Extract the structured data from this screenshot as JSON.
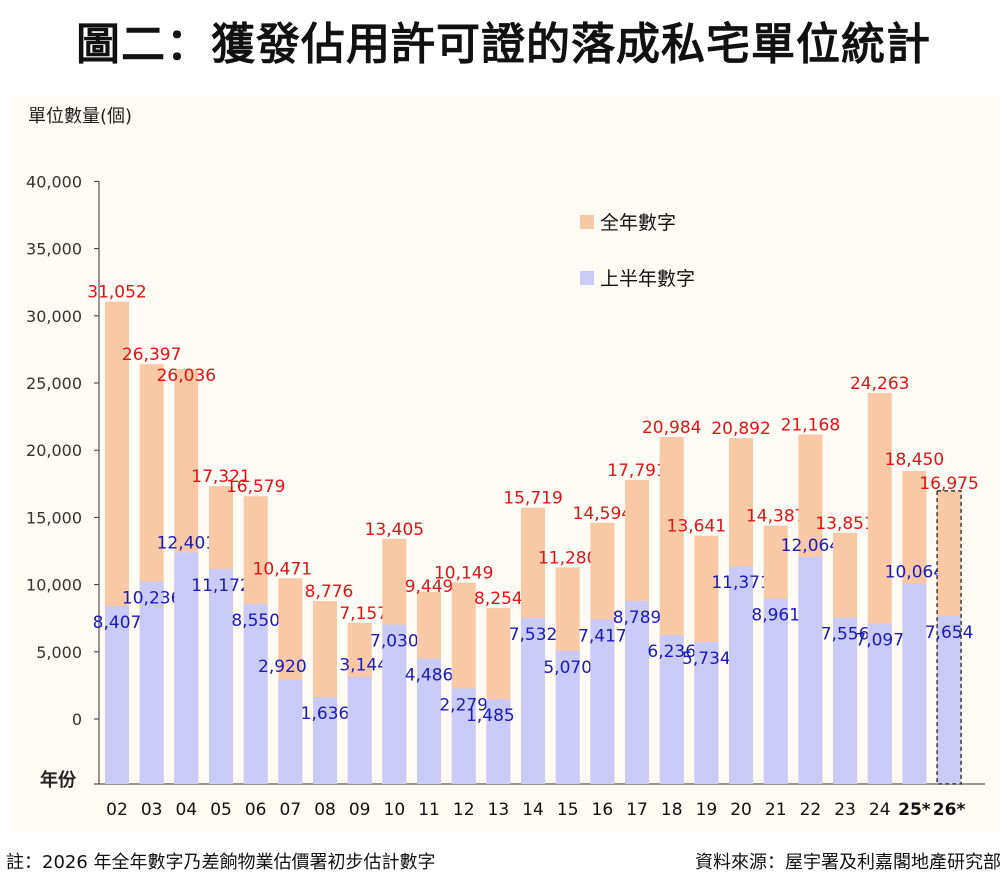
{
  "title": "圖二：獲發佔用許可證的落成私宅單位統計",
  "note": "註：2026 年全年數字乃差餉物業估價署初步估計數字",
  "source": "資料來源：屋宇署及利嘉閣地產研究部",
  "colors": {
    "full_year": "#f9c9a6",
    "half_year": "#c9caf6",
    "full_label": "#e01414",
    "half_label": "#1a1ab8",
    "axis": "#333333"
  },
  "chart_data": {
    "type": "bar",
    "ylabel": "單位數量(個)",
    "xlabel": "年份",
    "ylim": [
      0,
      40000
    ],
    "yticks": [
      "0",
      "5,000",
      "10,000",
      "15,000",
      "20,000",
      "25,000",
      "30,000",
      "35,000",
      "40,000"
    ],
    "yticks_values": [
      0,
      5000,
      10000,
      15000,
      20000,
      25000,
      30000,
      35000,
      40000
    ],
    "categories": [
      "02",
      "03",
      "04",
      "05",
      "06",
      "07",
      "08",
      "09",
      "10",
      "11",
      "12",
      "13",
      "14",
      "15",
      "16",
      "17",
      "18",
      "19",
      "20",
      "21",
      "22",
      "23",
      "24",
      "25*",
      "26*"
    ],
    "legend_position": "top-center",
    "series": [
      {
        "name": "全年數字",
        "values": [
          31052,
          26397,
          26036,
          17321,
          16579,
          10471,
          8776,
          7157,
          13405,
          9449,
          10149,
          8254,
          15719,
          11280,
          14594,
          17791,
          20984,
          13641,
          20892,
          14387,
          21168,
          13851,
          24263,
          18450,
          16975
        ],
        "labels": [
          "31,052",
          "26,397",
          "26,036",
          "17,321",
          "16,579",
          "10,471",
          "8,776",
          "7,157",
          "13,405",
          "9,449",
          "10,149",
          "8,254",
          "15,719",
          "11,280",
          "14,594",
          "17,791",
          "20,984",
          "13,641",
          "20,892",
          "14,387",
          "21,168",
          "13,851",
          "24,263",
          "18,450",
          "16,975"
        ]
      },
      {
        "name": "上半年數字",
        "values": [
          8407,
          10236,
          12401,
          11172,
          8550,
          2920,
          1636,
          3144,
          7030,
          4486,
          2279,
          1485,
          7532,
          5070,
          7417,
          8789,
          6236,
          5734,
          11371,
          8961,
          12064,
          7556,
          7097,
          10064,
          7654
        ],
        "labels": [
          "8,407",
          "10,236",
          "12,401",
          "11,172",
          "8,550",
          "2,920",
          "1,636",
          "3,144",
          "7,030",
          "4,486",
          "2,279",
          "1,485",
          "7,532",
          "5,070",
          "7,417",
          "8,789",
          "6,236",
          "5,734",
          "11,371",
          "8,961",
          "12,064",
          "7,556",
          "7,097",
          "10,064",
          "7,654"
        ]
      }
    ],
    "estimated_index": 24
  }
}
